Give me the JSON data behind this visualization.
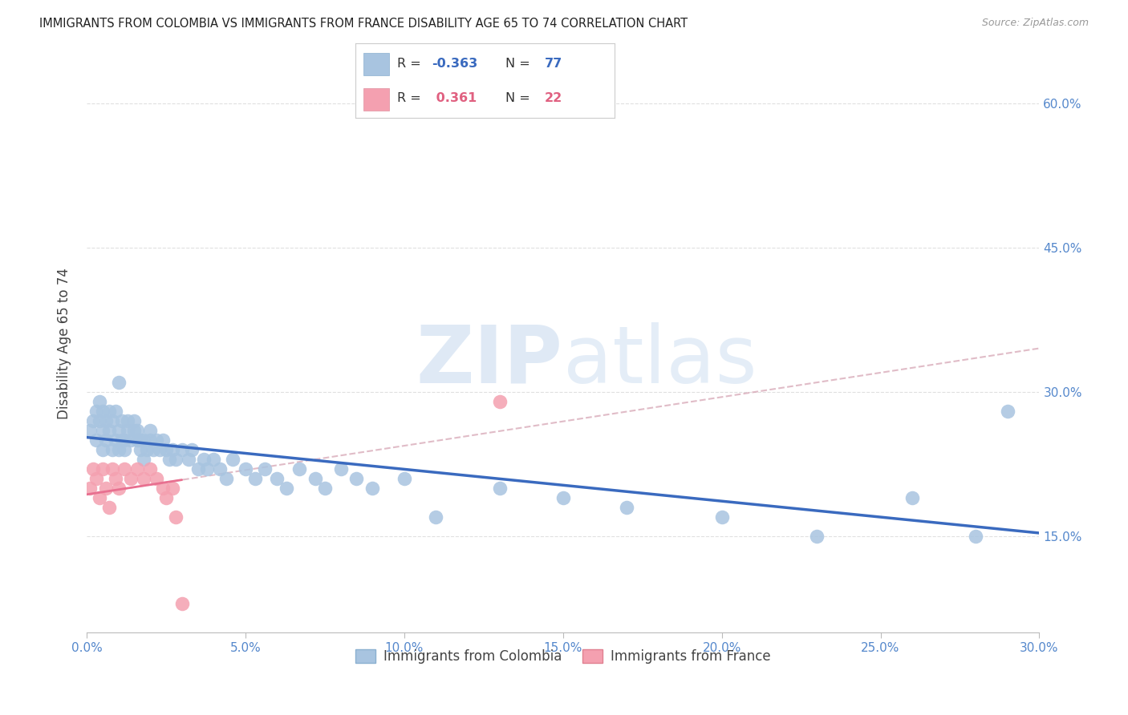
{
  "title": "IMMIGRANTS FROM COLOMBIA VS IMMIGRANTS FROM FRANCE DISABILITY AGE 65 TO 74 CORRELATION CHART",
  "source": "Source: ZipAtlas.com",
  "xlabel_ticks": [
    "0.0%",
    "5.0%",
    "10.0%",
    "15.0%",
    "20.0%",
    "25.0%",
    "30.0%"
  ],
  "ylabel_ticks": [
    "15.0%",
    "30.0%",
    "45.0%",
    "60.0%"
  ],
  "ylabel_label": "Disability Age 65 to 74",
  "xlim": [
    0.0,
    0.3
  ],
  "ylim": [
    0.05,
    0.65
  ],
  "colombia_color": "#a8c4e0",
  "france_color": "#f4a0b0",
  "colombia_line_color": "#3a6abf",
  "france_line_color": "#e87090",
  "france_dashed_color": "#d4a0b0",
  "colombia_R": -0.363,
  "colombia_N": 77,
  "france_R": 0.361,
  "france_N": 22,
  "legend_label_colombia": "Immigrants from Colombia",
  "legend_label_france": "Immigrants from France",
  "colombia_x": [
    0.001,
    0.002,
    0.003,
    0.003,
    0.004,
    0.004,
    0.005,
    0.005,
    0.005,
    0.006,
    0.006,
    0.007,
    0.007,
    0.008,
    0.008,
    0.009,
    0.009,
    0.01,
    0.01,
    0.01,
    0.011,
    0.011,
    0.012,
    0.012,
    0.013,
    0.013,
    0.014,
    0.015,
    0.015,
    0.016,
    0.016,
    0.017,
    0.017,
    0.018,
    0.018,
    0.019,
    0.02,
    0.02,
    0.021,
    0.022,
    0.023,
    0.024,
    0.025,
    0.026,
    0.027,
    0.028,
    0.03,
    0.032,
    0.033,
    0.035,
    0.037,
    0.038,
    0.04,
    0.042,
    0.044,
    0.046,
    0.05,
    0.053,
    0.056,
    0.06,
    0.063,
    0.067,
    0.072,
    0.075,
    0.08,
    0.085,
    0.09,
    0.1,
    0.11,
    0.13,
    0.15,
    0.17,
    0.2,
    0.23,
    0.26,
    0.28,
    0.29
  ],
  "colombia_y": [
    0.26,
    0.27,
    0.25,
    0.28,
    0.27,
    0.29,
    0.24,
    0.26,
    0.28,
    0.25,
    0.27,
    0.26,
    0.28,
    0.24,
    0.27,
    0.25,
    0.28,
    0.24,
    0.26,
    0.31,
    0.25,
    0.27,
    0.25,
    0.24,
    0.26,
    0.27,
    0.25,
    0.26,
    0.27,
    0.25,
    0.26,
    0.24,
    0.25,
    0.23,
    0.25,
    0.24,
    0.25,
    0.26,
    0.24,
    0.25,
    0.24,
    0.25,
    0.24,
    0.23,
    0.24,
    0.23,
    0.24,
    0.23,
    0.24,
    0.22,
    0.23,
    0.22,
    0.23,
    0.22,
    0.21,
    0.23,
    0.22,
    0.21,
    0.22,
    0.21,
    0.2,
    0.22,
    0.21,
    0.2,
    0.22,
    0.21,
    0.2,
    0.21,
    0.17,
    0.2,
    0.19,
    0.18,
    0.17,
    0.15,
    0.19,
    0.15,
    0.28
  ],
  "france_x": [
    0.001,
    0.002,
    0.003,
    0.004,
    0.005,
    0.006,
    0.007,
    0.008,
    0.009,
    0.01,
    0.012,
    0.014,
    0.016,
    0.018,
    0.02,
    0.022,
    0.024,
    0.025,
    0.027,
    0.028,
    0.03,
    0.13
  ],
  "france_y": [
    0.2,
    0.22,
    0.21,
    0.19,
    0.22,
    0.2,
    0.18,
    0.22,
    0.21,
    0.2,
    0.22,
    0.21,
    0.22,
    0.21,
    0.22,
    0.21,
    0.2,
    0.19,
    0.2,
    0.17,
    0.08,
    0.29
  ],
  "watermark_zip": "ZIP",
  "watermark_atlas": "atlas",
  "background_color": "#ffffff",
  "grid_color": "#e0e0e0"
}
